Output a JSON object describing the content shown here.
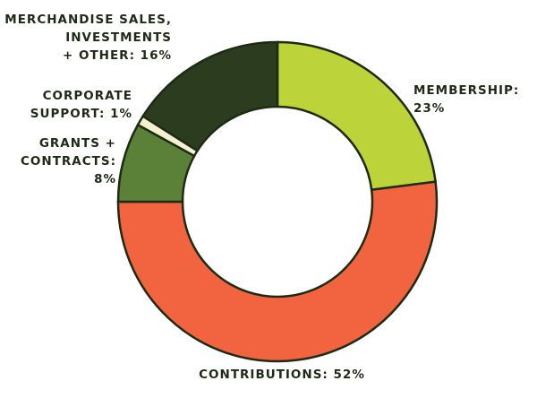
{
  "chart_data": {
    "type": "donut",
    "labels": [
      [
        "MEMBERSHIP:",
        "23%"
      ],
      [
        "CONTRIBUTIONS: 52%"
      ],
      [
        "GRANTS +",
        "CONTRACTS:",
        "8%"
      ],
      [
        "CORPORATE",
        "SUPPORT: 1%"
      ],
      [
        "MERCHANDISE SALES,",
        "INVESTMENTS",
        "+ OTHER: 16%"
      ]
    ],
    "values": [
      23,
      52,
      8,
      1,
      16
    ],
    "colors": [
      "#bcd43a",
      "#f26440",
      "#5b8139",
      "#f4f0d0",
      "#2c3d1f"
    ]
  }
}
